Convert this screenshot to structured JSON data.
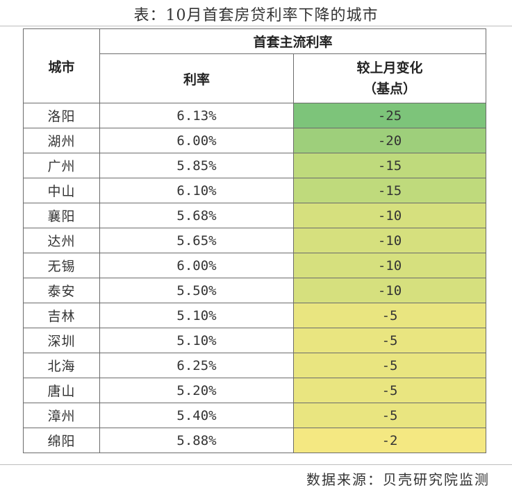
{
  "title": "表：10月首套房贷利率下降的城市",
  "source": "数据来源：贝壳研究院监测",
  "header": {
    "city": "城市",
    "group": "首套主流利率",
    "rate": "利率",
    "change_line1": "较上月变化",
    "change_line2": "（基点）"
  },
  "colors": {
    "change_scale_strong": "#7dc47a",
    "change_scale_mid": "#c9dd7c",
    "change_scale_weak": "#f4e882",
    "border": "#6b6b6b"
  },
  "chart_data": {
    "type": "table",
    "columns": [
      "城市",
      "利率",
      "较上月变化（基点）"
    ],
    "rows": [
      {
        "city": "洛阳",
        "rate": "6.13%",
        "change": "-25"
      },
      {
        "city": "湖州",
        "rate": "6.00%",
        "change": "-20"
      },
      {
        "city": "广州",
        "rate": "5.85%",
        "change": "-15"
      },
      {
        "city": "中山",
        "rate": "6.10%",
        "change": "-15"
      },
      {
        "city": "襄阳",
        "rate": "5.68%",
        "change": "-10"
      },
      {
        "city": "达州",
        "rate": "5.65%",
        "change": "-10"
      },
      {
        "city": "无锡",
        "rate": "6.00%",
        "change": "-10"
      },
      {
        "city": "泰安",
        "rate": "5.50%",
        "change": "-10"
      },
      {
        "city": "吉林",
        "rate": "5.10%",
        "change": "-5"
      },
      {
        "city": "深圳",
        "rate": "5.10%",
        "change": "-5"
      },
      {
        "city": "北海",
        "rate": "6.25%",
        "change": "-5"
      },
      {
        "city": "唐山",
        "rate": "5.20%",
        "change": "-5"
      },
      {
        "city": "漳州",
        "rate": "5.40%",
        "change": "-5"
      },
      {
        "city": "绵阳",
        "rate": "5.88%",
        "change": "-2"
      }
    ]
  }
}
